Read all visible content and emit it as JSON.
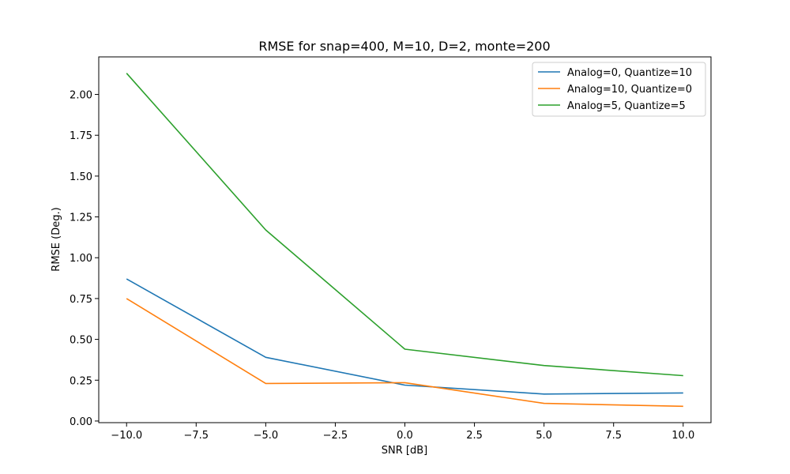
{
  "chart_data": {
    "type": "line",
    "title": "RMSE for snap=400, M=10, D=2, monte=200",
    "xlabel": "SNR [dB]",
    "ylabel": "RMSE (Deg.)",
    "x": [
      -10,
      -5,
      0,
      5,
      10
    ],
    "xlim": [
      -11,
      11
    ],
    "ylim": [
      -0.01,
      2.23
    ],
    "xticks": [
      -10,
      -7.5,
      -5,
      -2.5,
      0,
      2.5,
      5,
      7.5,
      10
    ],
    "xtick_labels": [
      "−10.0",
      "−7.5",
      "−5.0",
      "−2.5",
      "0.0",
      "2.5",
      "5.0",
      "7.5",
      "10.0"
    ],
    "yticks": [
      0,
      0.25,
      0.5,
      0.75,
      1.0,
      1.25,
      1.5,
      1.75,
      2.0
    ],
    "ytick_labels": [
      "0.00",
      "0.25",
      "0.50",
      "0.75",
      "1.00",
      "1.25",
      "1.50",
      "1.75",
      "2.00"
    ],
    "grid": false,
    "legend_position": "top-right",
    "series": [
      {
        "name": "Analog=0, Quantize=10",
        "color": "#1f77b4",
        "values": [
          0.87,
          0.39,
          0.22,
          0.165,
          0.172
        ]
      },
      {
        "name": "Analog=10, Quantize=0",
        "color": "#ff7f0e",
        "values": [
          0.75,
          0.23,
          0.235,
          0.108,
          0.09
        ]
      },
      {
        "name": "Analog=5, Quantize=5",
        "color": "#2ca02c",
        "values": [
          2.13,
          1.17,
          0.44,
          0.34,
          0.278
        ]
      }
    ]
  }
}
